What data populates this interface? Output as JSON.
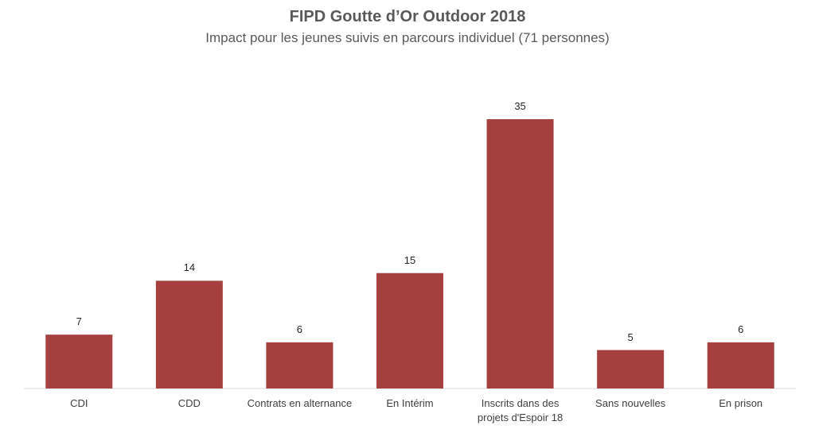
{
  "chart_data": {
    "type": "bar",
    "title": "FIPD Goutte d’Or Outdoor 2018",
    "subtitle": "Impact pour les jeunes suivis en parcours individuel (71 personnes)",
    "categories": [
      "CDI",
      "CDD",
      "Contrats en alternance",
      "En Intérim",
      "Inscrits dans des projets d'Espoir 18",
      "Sans nouvelles",
      "En prison"
    ],
    "values": [
      7,
      14,
      6,
      15,
      35,
      5,
      6
    ],
    "color": "#a5403f"
  }
}
